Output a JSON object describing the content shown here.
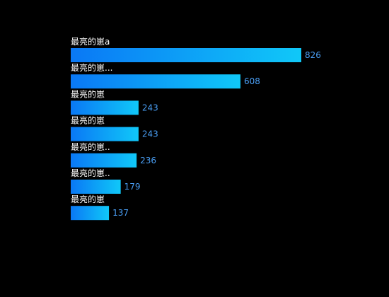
{
  "chart_data": {
    "type": "bar",
    "orientation": "horizontal",
    "categories": [
      "最亮的崽a",
      "最亮的崽...",
      "最亮的崽",
      "最亮的崽",
      "最亮的崽..",
      "最亮的崽..",
      "最亮的崽"
    ],
    "values": [
      826,
      608,
      243,
      243,
      236,
      179,
      137
    ],
    "title": "",
    "xlabel": "",
    "ylabel": "",
    "xlim": [
      0,
      826
    ],
    "grid": false,
    "legend": "none",
    "colors": {
      "background": "#000000",
      "bar_start": "#0a78f5",
      "bar_end": "#10c8f8",
      "category_label": "#ffffff",
      "value_label": "#4a9ff5"
    }
  }
}
